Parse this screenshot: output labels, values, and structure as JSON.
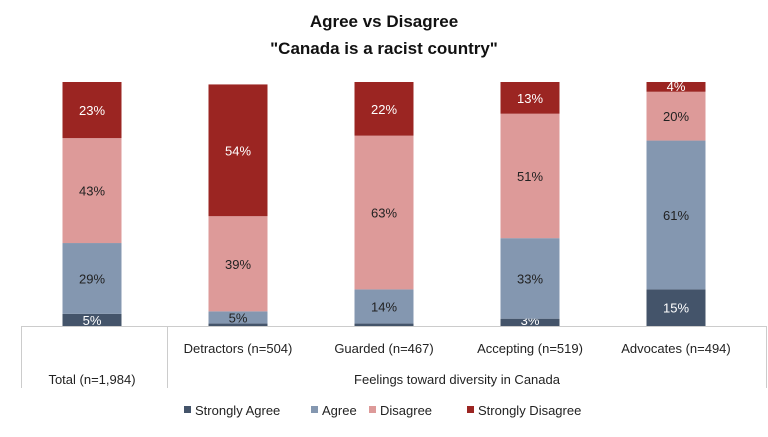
{
  "chart_data": {
    "type": "bar",
    "stacked": true,
    "title": "Agree vs Disagree",
    "subtitle": "\"Canada is a racist country\"",
    "xlabel": "Feelings toward diversity in Canada",
    "categories": [
      "Total (n=1,984)",
      "Detractors (n=504)",
      "Guarded (n=467)",
      "Accepting (n=519)",
      "Advocates (n=494)"
    ],
    "ylim": [
      0,
      100
    ],
    "grid": false,
    "legend_position": "bottom",
    "series": [
      {
        "name": "Strongly Agree",
        "color": "#44546a",
        "values": [
          5,
          1,
          1,
          3,
          15
        ],
        "labels": [
          "5%",
          "",
          "",
          "3%",
          "15%"
        ]
      },
      {
        "name": "Agree",
        "color": "#8497b0",
        "values": [
          29,
          5,
          14,
          33,
          61
        ],
        "labels": [
          "29%",
          "5%",
          "14%",
          "33%",
          "61%"
        ]
      },
      {
        "name": "Disagree",
        "color": "#dd9a99",
        "values": [
          43,
          39,
          63,
          51,
          20
        ],
        "labels": [
          "43%",
          "39%",
          "63%",
          "51%",
          "20%"
        ]
      },
      {
        "name": "Strongly Disagree",
        "color": "#9b2522",
        "values": [
          23,
          54,
          22,
          13,
          4
        ],
        "labels": [
          "23%",
          "54%",
          "22%",
          "13%",
          "4%"
        ]
      }
    ]
  }
}
